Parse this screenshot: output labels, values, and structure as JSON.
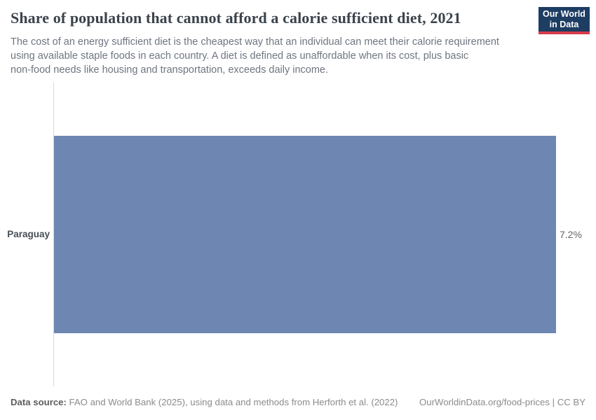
{
  "header": {
    "title": "Share of population that cannot afford a calorie sufficient diet, 2021",
    "subtitle_lines": [
      "The cost of an energy sufficient diet is the cheapest way that an individual can meet their calorie requirement",
      "using available staple foods in each country. A diet is defined as unaffordable when its cost, plus basic",
      "non-food needs like housing and transportation, exceeds daily income."
    ],
    "logo": {
      "line1": "Our World",
      "line2": "in Data"
    }
  },
  "chart_data": {
    "type": "bar",
    "orientation": "horizontal",
    "title": "Share of population that cannot afford a calorie sufficient diet, 2021",
    "categories": [
      "Paraguay"
    ],
    "values": [
      7.2
    ],
    "unit": "%",
    "value_labels": [
      "7.2%"
    ],
    "xlim": [
      0,
      7.2
    ],
    "grid": false,
    "legend": false,
    "bar_color": "#6e87b2"
  },
  "footer": {
    "datasource_label": "Data source:",
    "datasource_text": " FAO and World Bank (2025), using data and methods from Herforth et al. (2022)",
    "rights": "OurWorldinData.org/food-prices | CC BY"
  },
  "colors": {
    "bar": "#6e87b2",
    "logo_background": "#1d3d63",
    "logo_accent": "#d73c4c",
    "axis_line": "#dadada",
    "title_text": "#3b434c",
    "subtitle_text": "#6e7581"
  }
}
